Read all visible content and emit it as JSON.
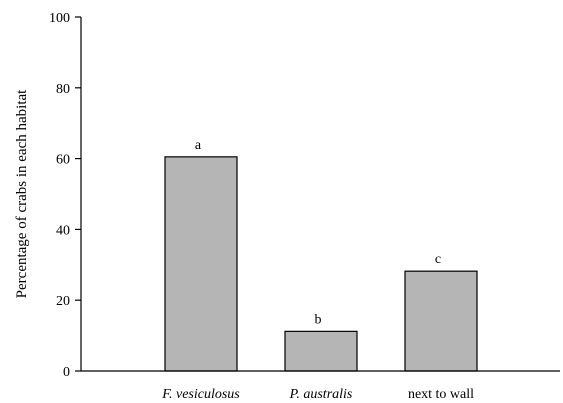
{
  "chart_data": {
    "type": "bar",
    "title": "",
    "xlabel": "",
    "ylabel": "Percentage of crabs in each habitat",
    "ylim": [
      0,
      100
    ],
    "yticks": [
      0,
      20,
      40,
      60,
      80,
      100
    ],
    "categories": [
      "F. vesiculosus",
      "P. australis",
      "next to wall"
    ],
    "category_italic": [
      true,
      true,
      false
    ],
    "values": [
      60.5,
      11.2,
      28.2
    ],
    "annotations": [
      "a",
      "b",
      "c"
    ],
    "grid": false,
    "legend": "none",
    "colors": {
      "bar_fill": "#b5b5b5",
      "bar_stroke": "#000000",
      "axis": "#000000"
    }
  }
}
